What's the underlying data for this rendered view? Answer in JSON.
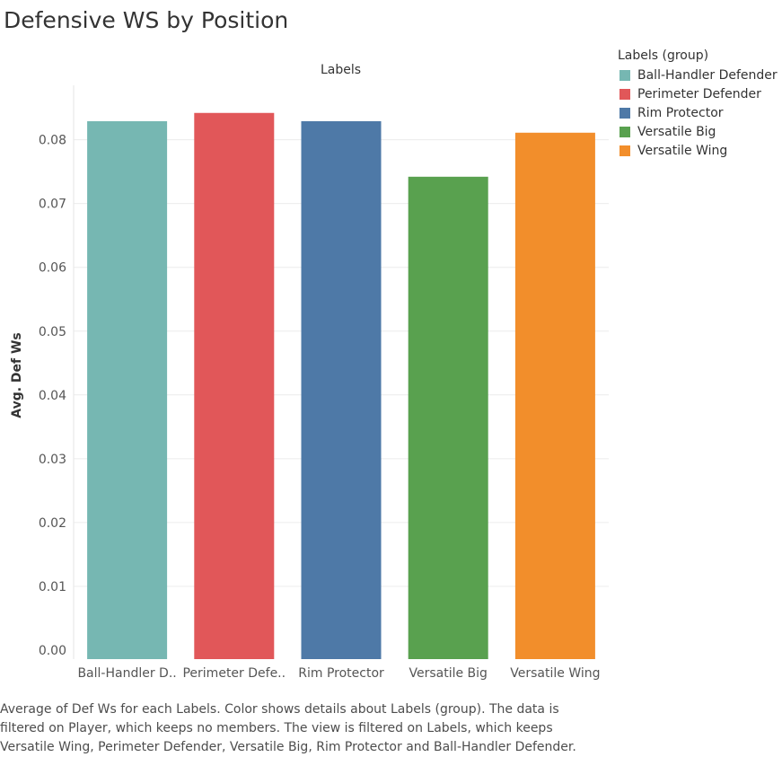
{
  "title": "Defensive WS by Position",
  "column_header": "Labels",
  "legend": {
    "title": "Labels (group)",
    "items": [
      {
        "label": "Ball-Handler Defender",
        "color": "#76b7b2"
      },
      {
        "label": "Perimeter Defender",
        "color": "#e15759"
      },
      {
        "label": "Rim Protector",
        "color": "#4e79a7"
      },
      {
        "label": "Versatile Big",
        "color": "#59a14f"
      },
      {
        "label": "Versatile Wing",
        "color": "#f28e2b"
      }
    ]
  },
  "chart_data": {
    "type": "bar",
    "title": "Defensive WS by Position",
    "xlabel": "Labels",
    "ylabel": "Avg. Def Ws",
    "categories": [
      "Ball-Handler D..",
      "Perimeter Defe..",
      "Rim Protector",
      "Versatile Big",
      "Versatile Wing"
    ],
    "values": [
      0.0829,
      0.0842,
      0.0829,
      0.0742,
      0.0811
    ],
    "colors": [
      "#76b7b2",
      "#e15759",
      "#4e79a7",
      "#59a14f",
      "#f28e2b"
    ],
    "ylim": [
      0,
      0.085
    ],
    "yticks": [
      "0.00",
      "0.01",
      "0.02",
      "0.03",
      "0.04",
      "0.05",
      "0.06",
      "0.07",
      "0.08"
    ],
    "grid": true,
    "legend_position": "right"
  },
  "caption": {
    "lines": [
      "Average of Def Ws for each Labels.  Color shows details about Labels (group). The data is",
      "filtered on Player, which keeps no members. The view is filtered on Labels, which keeps",
      "Versatile Wing, Perimeter Defender, Versatile Big, Rim Protector and Ball-Handler Defender."
    ]
  }
}
